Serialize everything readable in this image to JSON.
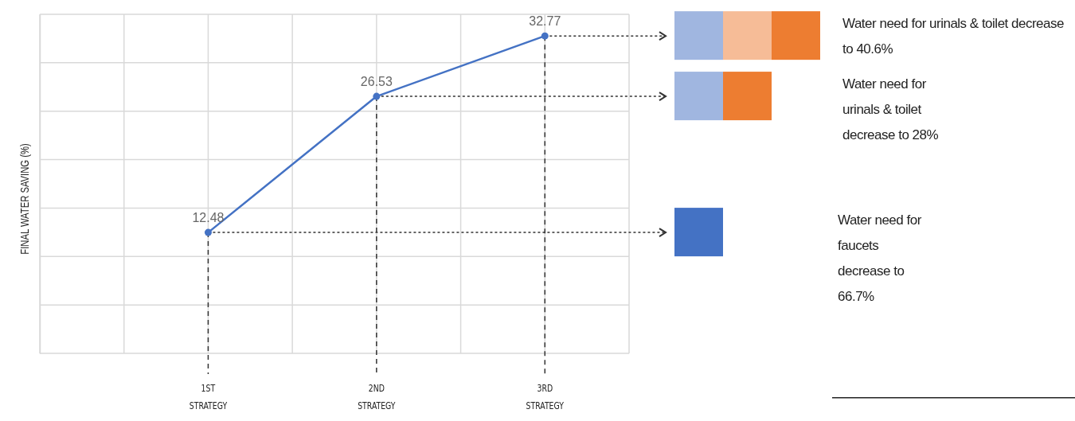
{
  "chart_data": {
    "type": "line",
    "ylabel": "FINAL WATER SAVING (%)",
    "categories": [
      "1ST STRATEGY",
      "2ND STRATEGY",
      "3RD STRATEGY"
    ],
    "series": [
      {
        "color": "#4472c4",
        "values": [
          12.48,
          26.53,
          32.77
        ]
      }
    ],
    "ylim": [
      0,
      35
    ],
    "yticks": [
      {
        "value": 0,
        "label": null
      },
      {
        "value": 5,
        "label": null
      },
      {
        "value": 10,
        "label": null
      },
      {
        "value": 15,
        "label": null
      },
      {
        "value": 20,
        "label": null
      },
      {
        "value": 25,
        "label": null
      },
      {
        "value": 30,
        "label": null
      },
      {
        "value": 35,
        "label": null
      }
    ],
    "tick_labels": "x",
    "grid": true,
    "marker": "circle",
    "line_style": "solid",
    "data_labels": true,
    "annotations": [
      "Water need for urinals & toilet decrease to 40.6%",
      "Water need for urinals & toilet decrease to 28%",
      "Water need for faucets decrease to 66.7%"
    ]
  }
}
